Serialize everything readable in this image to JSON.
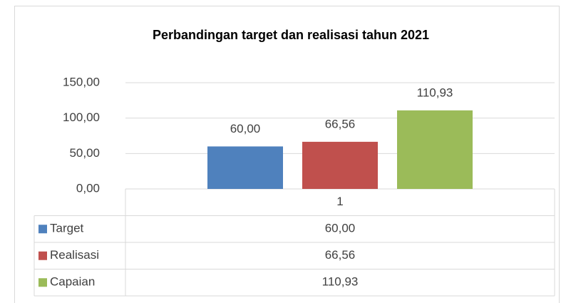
{
  "chart_data": {
    "type": "bar",
    "title": "Perbandingan target dan realisasi tahun 2021",
    "categories": [
      "1"
    ],
    "series": [
      {
        "name": "Target",
        "color": "#4f81bd",
        "values": [
          60
        ],
        "value_labels": [
          "60,00"
        ]
      },
      {
        "name": "Realisasi",
        "color": "#c0504d",
        "values": [
          66.56
        ],
        "value_labels": [
          "66,56"
        ]
      },
      {
        "name": "Capaian",
        "color": "#9bbb59",
        "values": [
          110.93
        ],
        "value_labels": [
          "110,93"
        ]
      }
    ],
    "ylim": [
      0,
      150
    ],
    "yticks": [
      {
        "value": 0,
        "label": "0,00"
      },
      {
        "value": 50,
        "label": "50,00"
      },
      {
        "value": 100,
        "label": "100,00"
      },
      {
        "value": 150,
        "label": "150,00"
      }
    ],
    "grid": true,
    "data_table": true
  }
}
